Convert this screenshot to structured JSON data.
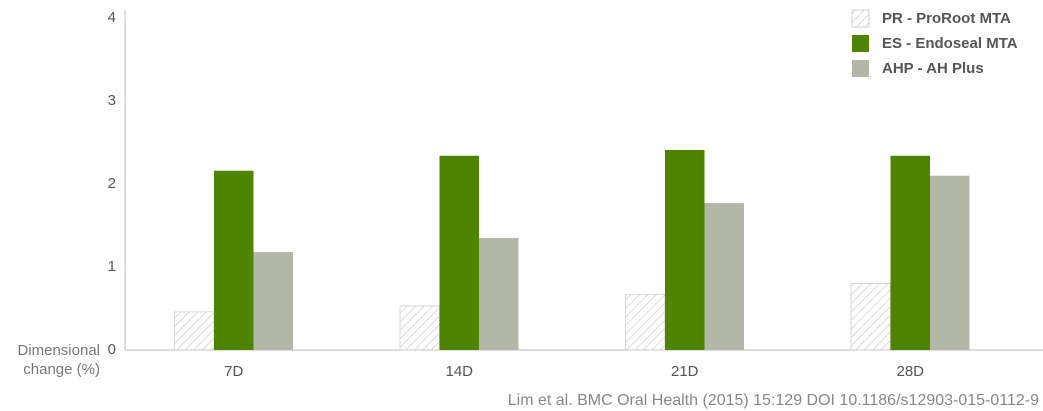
{
  "chart_data": {
    "type": "bar",
    "y_label": "Dimensional change (%)",
    "source": "Lim et al. BMC Oral Health (2015) 15:129 DOI 10.1186/s12903-015-0112-9",
    "categories": [
      "7D",
      "14D",
      "21D",
      "28D"
    ],
    "series": [
      {
        "name": "PR - ProRoot MTA",
        "color": "#cfcfcf",
        "pattern": "hatch",
        "values": [
          0.46,
          0.53,
          0.67,
          0.8
        ]
      },
      {
        "name": "ES - Endoseal MTA",
        "color": "#4e8400",
        "values": [
          2.16,
          2.34,
          2.41,
          2.34
        ]
      },
      {
        "name": "AHP - AH Plus",
        "color": "#b3b7a8",
        "values": [
          1.18,
          1.35,
          1.77,
          2.1
        ]
      }
    ],
    "ylim": [
      0,
      4
    ],
    "yticks": [
      0,
      1,
      2,
      3,
      4
    ],
    "grid": false,
    "legend": "top-right"
  }
}
